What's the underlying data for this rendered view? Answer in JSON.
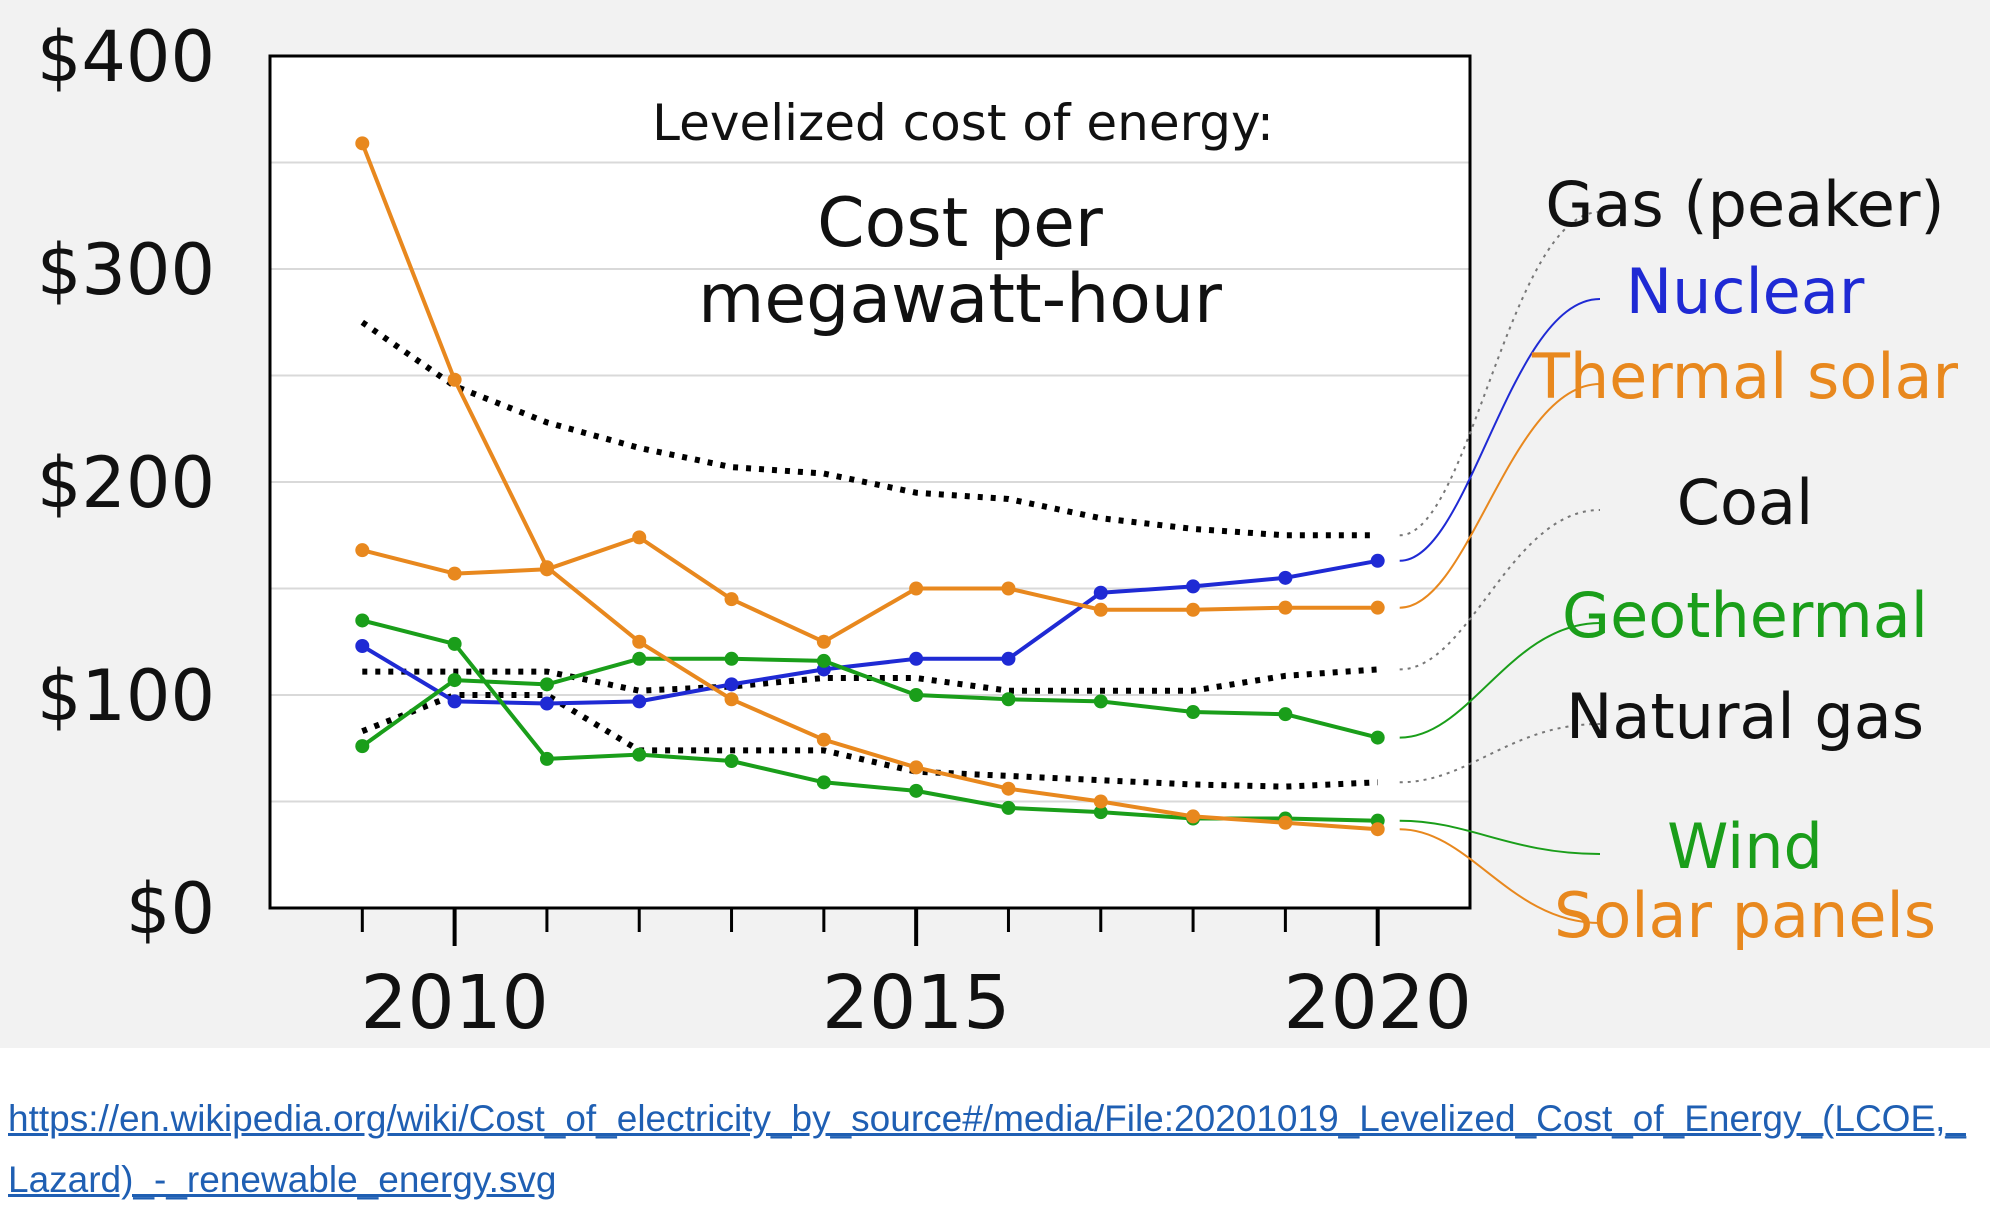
{
  "source_link": {
    "text": "https://en.wikipedia.org/wiki/Cost_of_electricity_by_source#/media/File:20201019_Levelized_Cost_of_Energy_(LCOE,_Lazard)_-_renewable_energy.svg"
  },
  "chart_data": {
    "type": "line",
    "title": "Levelized cost of energy:",
    "subtitle": [
      "Cost per",
      "megawatt-hour"
    ],
    "xlabel": "",
    "ylabel": "",
    "xlim": [
      2008,
      2021
    ],
    "ylim": [
      0,
      400
    ],
    "x_ticks": [
      2010,
      2015,
      2020
    ],
    "y_ticks": [
      {
        "value": 0,
        "label": "$0"
      },
      {
        "value": 100,
        "label": "$100"
      },
      {
        "value": 200,
        "label": "$200"
      },
      {
        "value": 300,
        "label": "$300"
      },
      {
        "value": 400,
        "label": "$400"
      }
    ],
    "grid": "horizontal",
    "legend_placement": "right",
    "x": [
      2009,
      2010,
      2011,
      2012,
      2013,
      2014,
      2015,
      2016,
      2017,
      2018,
      2019,
      2020
    ],
    "series": [
      {
        "name": "Gas (peaker)",
        "color": "#000000",
        "style": "dotted",
        "values": [
          275,
          245,
          228,
          216,
          207,
          204,
          195,
          192,
          183,
          178,
          175,
          175
        ]
      },
      {
        "name": "Nuclear",
        "color": "#1f2ad4",
        "style": "solid",
        "values": [
          123,
          97,
          96,
          97,
          105,
          112,
          117,
          117,
          148,
          151,
          155,
          163
        ]
      },
      {
        "name": "Thermal solar",
        "color": "#e8881e",
        "style": "solid",
        "values": [
          168,
          157,
          159,
          174,
          145,
          125,
          150,
          150,
          140,
          140,
          141,
          141
        ]
      },
      {
        "name": "Coal",
        "color": "#000000",
        "style": "dotted",
        "values": [
          111,
          111,
          111,
          102,
          104,
          108,
          108,
          102,
          102,
          102,
          109,
          112
        ]
      },
      {
        "name": "Geothermal",
        "color": "#1a9e1a",
        "style": "solid",
        "values": [
          76,
          107,
          105,
          117,
          117,
          116,
          100,
          98,
          97,
          92,
          91,
          80
        ]
      },
      {
        "name": "Natural gas",
        "color": "#000000",
        "style": "dotted",
        "values": [
          83,
          100,
          100,
          74,
          74,
          74,
          64,
          62,
          60,
          58,
          57,
          59
        ]
      },
      {
        "name": "Wind",
        "color": "#1a9e1a",
        "style": "solid",
        "values": [
          135,
          124,
          70,
          72,
          69,
          59,
          55,
          47,
          45,
          42,
          42,
          41
        ]
      },
      {
        "name": "Solar panels",
        "color": "#e8881e",
        "style": "solid",
        "values": [
          359,
          248,
          160,
          125,
          98,
          79,
          66,
          56,
          50,
          43,
          40,
          37
        ]
      }
    ],
    "legend_order": [
      "Gas (peaker)",
      "Nuclear",
      "Thermal solar",
      "Coal",
      "Geothermal",
      "Natural gas",
      "Wind",
      "Solar panels"
    ]
  }
}
